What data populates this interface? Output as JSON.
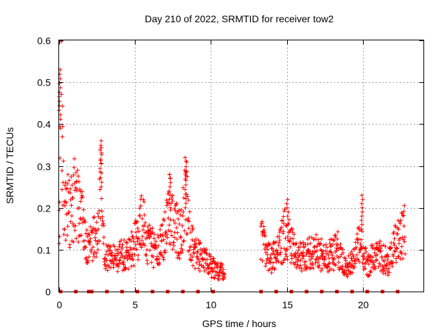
{
  "chart_data": {
    "type": "scatter",
    "title": "Day 210 of 2022, SRMTID for receiver tow2",
    "xlabel": "GPS time / hours",
    "ylabel": "SRMTID / TECUs",
    "xlim": [
      0,
      24
    ],
    "ylim": [
      0,
      0.6
    ],
    "x_ticks": [
      0,
      5,
      10,
      15,
      20
    ],
    "y_ticks": [
      0,
      0.1,
      0.2,
      0.3,
      0.4,
      0.5,
      0.6
    ],
    "x_tick_labels": [
      "0",
      "5",
      "10",
      "15",
      "20"
    ],
    "y_tick_labels": [
      "0",
      "0.1",
      "0.2",
      "0.3",
      "0.4",
      "0.5",
      "0.6"
    ],
    "grid": true,
    "marker": "+",
    "marker_color": "#ff0000",
    "series": [
      {
        "name": "SRMTID",
        "segments": [
          {
            "x_start": 0.0,
            "x_end": 10.9,
            "data_gap": false
          },
          {
            "x_start": 10.9,
            "x_end": 13.3,
            "data_gap": true
          },
          {
            "x_start": 13.3,
            "x_end": 22.8,
            "data_gap": false
          }
        ],
        "profile": [
          [
            0.05,
            0.45
          ],
          [
            0.15,
            0.46
          ],
          [
            0.3,
            0.22
          ],
          [
            0.5,
            0.21
          ],
          [
            0.7,
            0.19
          ],
          [
            1.0,
            0.22
          ],
          [
            1.3,
            0.2
          ],
          [
            1.6,
            0.15
          ],
          [
            1.9,
            0.1
          ],
          [
            2.2,
            0.13
          ],
          [
            2.5,
            0.12
          ],
          [
            2.75,
            0.3
          ],
          [
            3.0,
            0.1
          ],
          [
            3.3,
            0.08
          ],
          [
            3.8,
            0.08
          ],
          [
            4.3,
            0.09
          ],
          [
            4.8,
            0.1
          ],
          [
            5.2,
            0.13
          ],
          [
            5.5,
            0.18
          ],
          [
            5.8,
            0.12
          ],
          [
            6.3,
            0.1
          ],
          [
            6.8,
            0.12
          ],
          [
            7.3,
            0.2
          ],
          [
            7.6,
            0.16
          ],
          [
            8.0,
            0.13
          ],
          [
            8.3,
            0.24
          ],
          [
            8.6,
            0.14
          ],
          [
            9.0,
            0.09
          ],
          [
            9.5,
            0.08
          ],
          [
            10.0,
            0.06
          ],
          [
            10.5,
            0.05
          ],
          [
            10.9,
            0.05
          ],
          [
            13.3,
            0.12
          ],
          [
            13.6,
            0.1
          ],
          [
            14.0,
            0.08
          ],
          [
            14.5,
            0.1
          ],
          [
            14.9,
            0.14
          ],
          [
            15.2,
            0.12
          ],
          [
            15.6,
            0.09
          ],
          [
            16.0,
            0.08
          ],
          [
            16.5,
            0.09
          ],
          [
            17.0,
            0.1
          ],
          [
            17.5,
            0.08
          ],
          [
            18.0,
            0.09
          ],
          [
            18.4,
            0.1
          ],
          [
            18.8,
            0.06
          ],
          [
            19.3,
            0.07
          ],
          [
            19.8,
            0.12
          ],
          [
            20.3,
            0.06
          ],
          [
            20.8,
            0.09
          ],
          [
            21.3,
            0.08
          ],
          [
            21.7,
            0.07
          ],
          [
            22.0,
            0.1
          ],
          [
            22.4,
            0.13
          ],
          [
            22.8,
            0.15
          ]
        ],
        "spikes": [
          {
            "x": 0.05,
            "min": 0.39,
            "max": 0.53
          },
          {
            "x": 2.75,
            "min": 0.25,
            "max": 0.36
          },
          {
            "x": 7.3,
            "min": 0.2,
            "max": 0.28
          },
          {
            "x": 8.35,
            "min": 0.2,
            "max": 0.32
          },
          {
            "x": 15.05,
            "min": 0.18,
            "max": 0.22
          },
          {
            "x": 19.95,
            "min": 0.16,
            "max": 0.23
          }
        ],
        "zero_markers": [
          0.1,
          1.1,
          1.95,
          2.15,
          3.15,
          4.15,
          5.15,
          6.15,
          7.15,
          8.15,
          9.15,
          10.15,
          13.3,
          14.3,
          15.3,
          16.3,
          17.3,
          18.3,
          19.3,
          20.3,
          21.3,
          22.3
        ]
      }
    ]
  }
}
